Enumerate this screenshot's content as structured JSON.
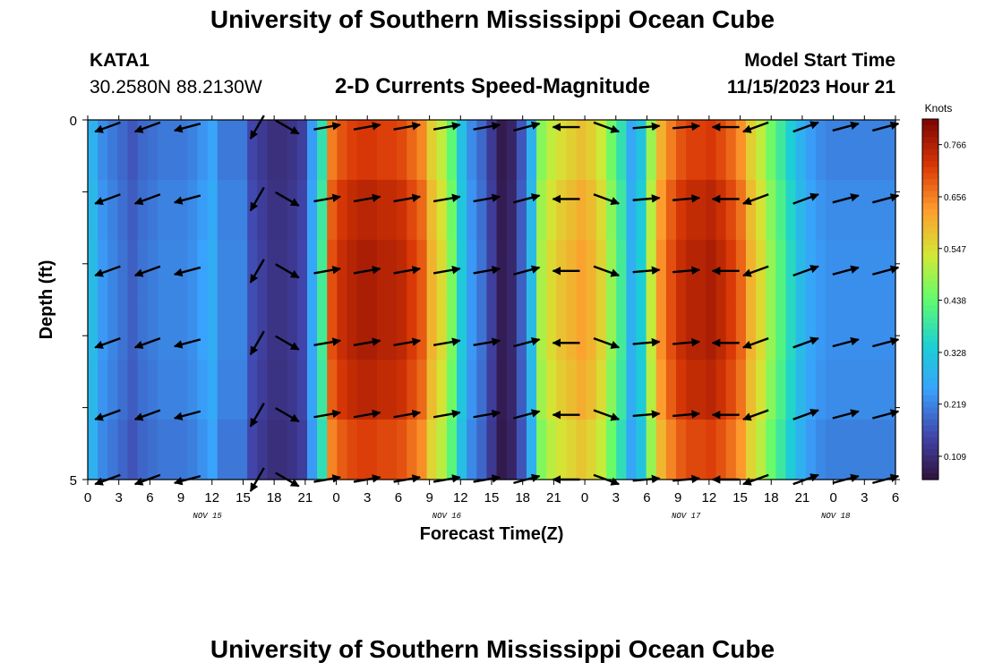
{
  "header": {
    "title": "University of Southern Mississippi Ocean Cube",
    "station_id": "KATA1",
    "coords": "30.2580N  88.2130W",
    "subtitle": "2-D Currents Speed-Magnitude",
    "model_label": "Model Start Time",
    "model_time": "11/15/2023 Hour 21"
  },
  "footer": {
    "title": "University of Southern Mississippi Ocean Cube"
  },
  "chart_data": {
    "type": "heatmap",
    "title": "2-D Currents Speed-Magnitude",
    "xlabel": "Forecast Time(Z)",
    "ylabel": "Depth (ft)",
    "xlim": [
      0,
      81
    ],
    "ylim": [
      0,
      5
    ],
    "y_ticks": [
      "0",
      "5"
    ],
    "x_tick_labels": [
      "0",
      "3",
      "6",
      "9",
      "12",
      "15",
      "18",
      "21",
      "0",
      "3",
      "6",
      "9",
      "12",
      "15",
      "18",
      "21",
      "0",
      "3",
      "6",
      "9",
      "12",
      "15",
      "18",
      "21",
      "0",
      "3",
      "6"
    ],
    "date_labels": [
      {
        "label": "NOV 15",
        "x_hour": 12
      },
      {
        "label": "NOV 16",
        "x_hour": 36
      },
      {
        "label": "NOV 17",
        "x_hour": 60
      },
      {
        "label": "NOV 18",
        "x_hour": 75
      }
    ],
    "colorbar": {
      "unit": "Knots",
      "ticks": [
        "0.766",
        "0.656",
        "0.547",
        "0.438",
        "0.328",
        "0.219",
        "0.109"
      ],
      "min": 0.06,
      "max": 0.82
    },
    "speed_by_hour": [
      0.3,
      0.24,
      0.22,
      0.2,
      0.18,
      0.2,
      0.21,
      0.22,
      0.22,
      0.22,
      0.23,
      0.25,
      0.27,
      0.22,
      0.22,
      0.22,
      0.16,
      0.14,
      0.12,
      0.12,
      0.13,
      0.15,
      0.26,
      0.4,
      0.7,
      0.74,
      0.76,
      0.77,
      0.77,
      0.76,
      0.76,
      0.75,
      0.72,
      0.69,
      0.6,
      0.55,
      0.46,
      0.33,
      0.24,
      0.2,
      0.14,
      0.08,
      0.1,
      0.18,
      0.3,
      0.5,
      0.55,
      0.58,
      0.6,
      0.62,
      0.6,
      0.56,
      0.48,
      0.4,
      0.28,
      0.34,
      0.52,
      0.64,
      0.7,
      0.74,
      0.76,
      0.76,
      0.77,
      0.75,
      0.72,
      0.68,
      0.6,
      0.55,
      0.48,
      0.42,
      0.36,
      0.3,
      0.26,
      0.24,
      0.23,
      0.23,
      0.23,
      0.23,
      0.23,
      0.23,
      0.23
    ],
    "depth_factor": [
      0.94,
      0.98,
      1.0,
      1.0,
      0.98,
      0.93
    ],
    "arrows": {
      "x_hours": [
        2,
        6,
        10,
        17,
        20,
        24,
        28,
        32,
        36,
        40,
        44,
        48,
        52,
        56,
        60,
        64,
        67,
        72,
        76,
        80
      ],
      "depths": [
        0.1,
        1.1,
        2.1,
        3.1,
        4.1,
        5.0
      ],
      "dir_deg": [
        200,
        200,
        195,
        240,
        330,
        10,
        10,
        10,
        10,
        10,
        15,
        180,
        340,
        5,
        5,
        180,
        200,
        20,
        15,
        15
      ]
    }
  }
}
